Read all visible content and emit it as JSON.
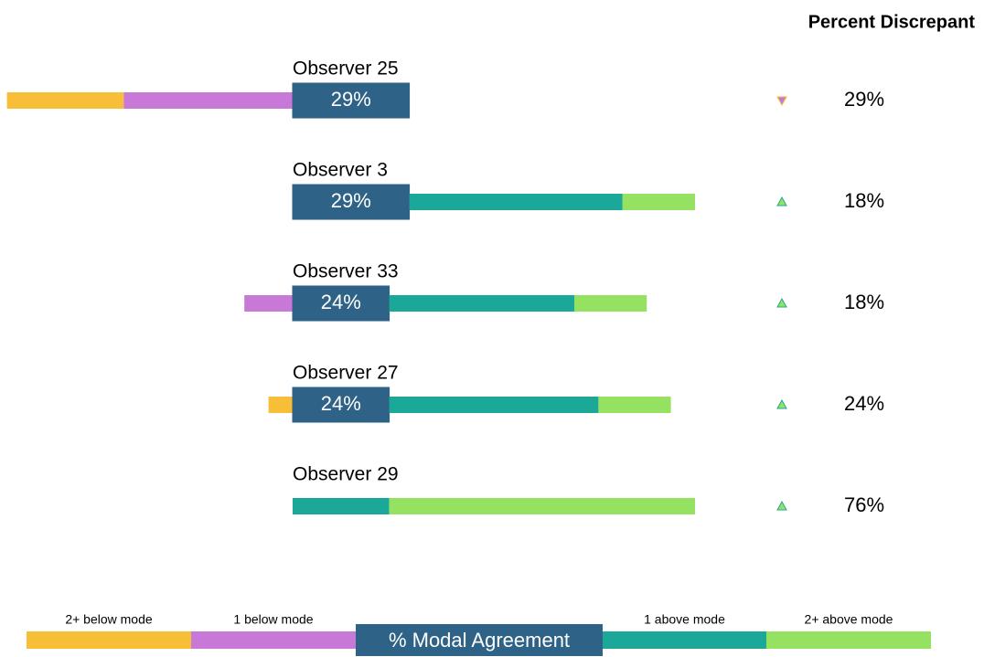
{
  "chart_data": {
    "type": "diverging-bar",
    "title": "Percent Discrepant",
    "categories": [
      "Observer 25",
      "Observer 3",
      "Observer 33",
      "Observer 27",
      "Observer 29"
    ],
    "series": [
      {
        "name": "2+ below mode",
        "color": "#f7be38",
        "values": [
          29,
          0,
          0,
          6,
          0
        ]
      },
      {
        "name": "1 below mode",
        "color": "#c878d6",
        "values": [
          42,
          0,
          12,
          0,
          0
        ]
      },
      {
        "name": "% Modal Agreement",
        "color": "#2e6286",
        "values": [
          29,
          29,
          24,
          24,
          0
        ],
        "value_labels": [
          "29%",
          "29%",
          "24%",
          "24%",
          null
        ]
      },
      {
        "name": "1 above mode",
        "color": "#1ba898",
        "values": [
          0,
          53,
          46,
          52,
          24
        ]
      },
      {
        "name": "2+ above mode",
        "color": "#95e162",
        "values": [
          0,
          18,
          18,
          18,
          76
        ]
      }
    ],
    "discrepant": {
      "values": [
        29,
        18,
        18,
        24,
        76
      ],
      "value_labels": [
        "29%",
        "18%",
        "18%",
        "24%",
        "76%"
      ],
      "direction": [
        "down",
        "up",
        "up",
        "up",
        "up"
      ]
    }
  }
}
